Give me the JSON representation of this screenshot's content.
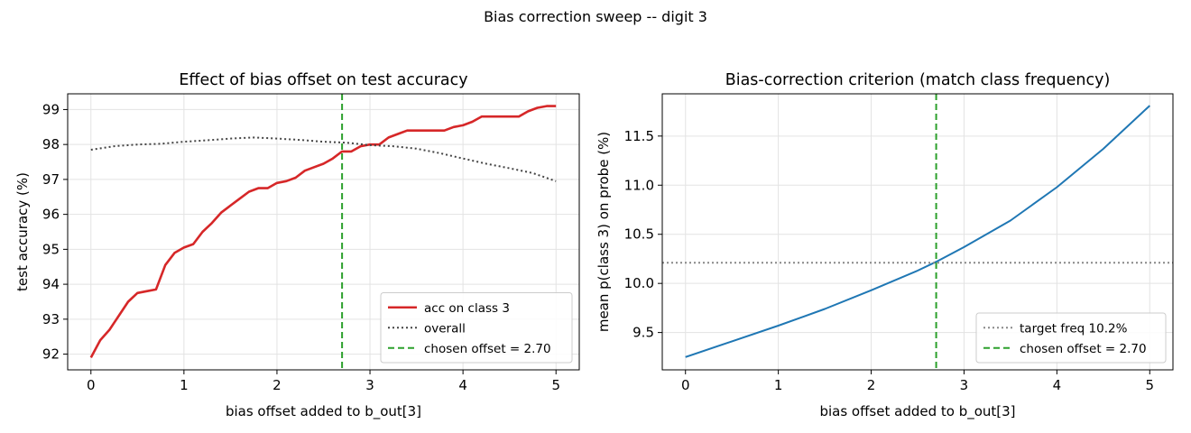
{
  "suptitle": "Bias correction sweep -- digit 3",
  "chart_data": [
    {
      "type": "line",
      "title": "Effect of bias offset on test accuracy",
      "xlabel": "bias offset added to b_out[3]",
      "ylabel": "test accuracy (%)",
      "xlim": [
        -0.25,
        5.25
      ],
      "ylim": [
        91.55,
        99.45
      ],
      "xticks": [
        0,
        1,
        2,
        3,
        4,
        5
      ],
      "yticks": [
        92,
        93,
        94,
        95,
        96,
        97,
        98,
        99
      ],
      "grid": true,
      "legend_position": "lower-right",
      "series": [
        {
          "name": "acc on class 3",
          "color": "#d62728",
          "style": "solid",
          "x": [
            0,
            0.1,
            0.2,
            0.3,
            0.4,
            0.5,
            0.6,
            0.7,
            0.8,
            0.9,
            1.0,
            1.1,
            1.2,
            1.3,
            1.4,
            1.5,
            1.6,
            1.7,
            1.8,
            1.9,
            2.0,
            2.1,
            2.2,
            2.3,
            2.4,
            2.5,
            2.6,
            2.7,
            2.8,
            2.9,
            3.0,
            3.1,
            3.2,
            3.3,
            3.4,
            3.5,
            3.6,
            3.7,
            3.8,
            3.9,
            4.0,
            4.1,
            4.2,
            4.3,
            4.4,
            4.5,
            4.6,
            4.7,
            4.8,
            4.9,
            5.0
          ],
          "y": [
            91.9,
            92.4,
            92.7,
            93.1,
            93.5,
            93.75,
            93.8,
            93.85,
            94.55,
            94.9,
            95.05,
            95.15,
            95.5,
            95.75,
            96.05,
            96.25,
            96.45,
            96.65,
            96.75,
            96.75,
            96.9,
            96.95,
            97.05,
            97.25,
            97.35,
            97.45,
            97.6,
            97.8,
            97.8,
            97.95,
            98.0,
            98.0,
            98.2,
            98.3,
            98.4,
            98.4,
            98.4,
            98.4,
            98.4,
            98.5,
            98.55,
            98.65,
            98.8,
            98.8,
            98.8,
            98.8,
            98.8,
            98.95,
            99.05,
            99.1,
            99.1
          ]
        },
        {
          "name": "overall",
          "color": "#444444",
          "style": "dotted",
          "x": [
            0,
            0.25,
            0.5,
            0.75,
            1.0,
            1.25,
            1.5,
            1.75,
            2.0,
            2.25,
            2.5,
            2.75,
            3.0,
            3.25,
            3.5,
            3.75,
            4.0,
            4.25,
            4.5,
            4.75,
            5.0
          ],
          "y": [
            97.85,
            97.95,
            98.0,
            98.02,
            98.08,
            98.12,
            98.17,
            98.2,
            98.17,
            98.13,
            98.08,
            98.05,
            97.98,
            97.95,
            97.88,
            97.75,
            97.6,
            97.45,
            97.32,
            97.18,
            96.95
          ]
        },
        {
          "name": "chosen offset = 2.70",
          "color": "#2ca02c",
          "style": "dashed",
          "vline": 2.7
        }
      ]
    },
    {
      "type": "line",
      "title": "Bias-correction criterion (match class frequency)",
      "xlabel": "bias offset added to b_out[3]",
      "ylabel": "mean p(class 3) on probe (%)",
      "xlim": [
        -0.25,
        5.25
      ],
      "ylim": [
        9.12,
        11.93
      ],
      "xticks": [
        0,
        1,
        2,
        3,
        4,
        5
      ],
      "yticks": [
        9.5,
        10.0,
        10.5,
        11.0,
        11.5
      ],
      "grid": true,
      "legend_position": "lower-right",
      "series": [
        {
          "name": "",
          "color": "#1f77b4",
          "style": "solid",
          "x": [
            0,
            0.5,
            1.0,
            1.5,
            2.0,
            2.5,
            2.7,
            3.0,
            3.5,
            4.0,
            4.5,
            5.0
          ],
          "y": [
            9.25,
            9.41,
            9.57,
            9.74,
            9.93,
            10.13,
            10.22,
            10.37,
            10.64,
            10.98,
            11.37,
            11.81
          ]
        },
        {
          "name": "target freq 10.2%",
          "color": "#888888",
          "style": "dotted",
          "hline": 10.21
        },
        {
          "name": "chosen offset = 2.70",
          "color": "#2ca02c",
          "style": "dashed",
          "vline": 2.7
        }
      ]
    }
  ]
}
